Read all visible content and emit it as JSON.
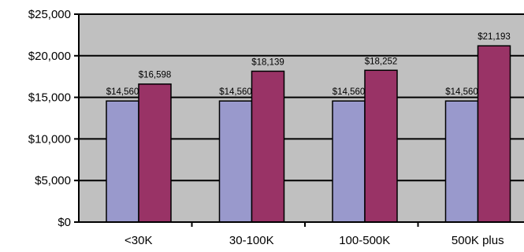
{
  "chart_data": {
    "type": "bar",
    "categories": [
      "<30K",
      "30-100K",
      "100-500K",
      "500K plus"
    ],
    "series": [
      {
        "values": [
          14560,
          14560,
          14560,
          14560
        ],
        "color": "#9999cc",
        "data_labels": [
          "$14,560",
          "$14,560",
          "$14,560",
          "$14,560"
        ]
      },
      {
        "values": [
          16598,
          18139,
          18252,
          21193
        ],
        "color": "#993366",
        "data_labels": [
          "$16,598",
          "$18,139",
          "$18,252",
          "$21,193"
        ]
      }
    ],
    "ylim": [
      0,
      25000
    ],
    "yticks": [
      0,
      5000,
      10000,
      15000,
      20000,
      25000
    ],
    "ytick_labels": [
      "$0",
      "$5,000",
      "$10,000",
      "$15,000",
      "$20,000",
      "$25,000"
    ],
    "plot_background": "#c0c0c0",
    "grid": true,
    "legend": "none",
    "title": "",
    "xlabel": "",
    "ylabel": ""
  }
}
